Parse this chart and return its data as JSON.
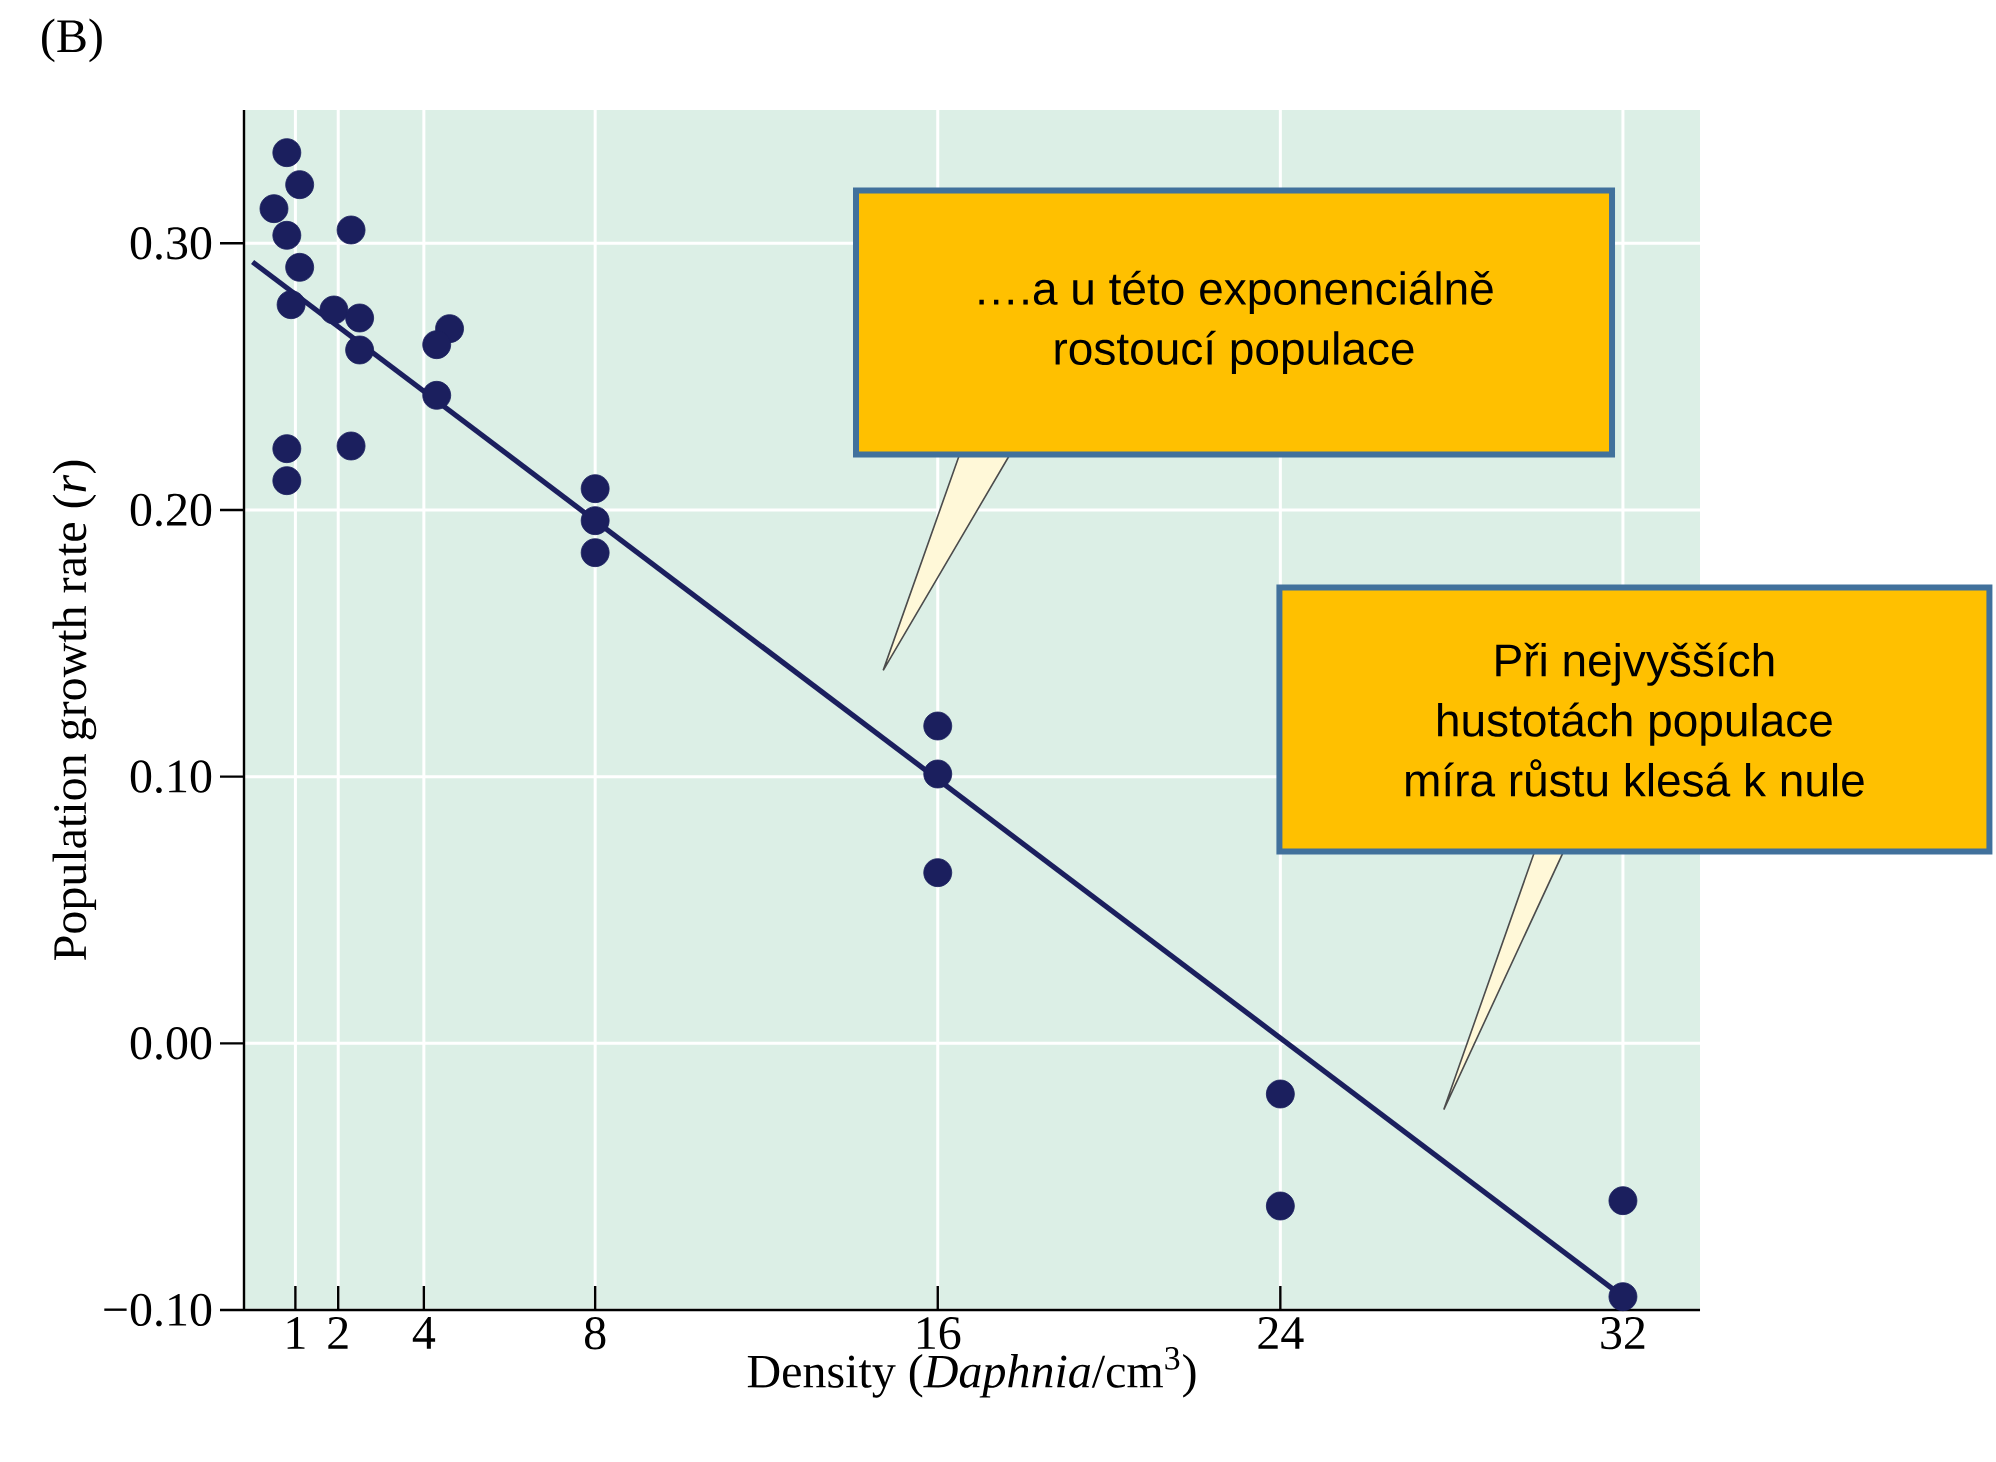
{
  "chart_data": {
    "type": "scatter",
    "title": "(B)",
    "xlabel": "Density (*Daphnia*/cm$^{3}$)",
    "ylabel": "Population growth rate (*r*)",
    "xlim": [
      -0.2,
      33.8
    ],
    "ylim": [
      -0.1,
      0.35
    ],
    "xticks": [
      1,
      2,
      4,
      8,
      16,
      24,
      32
    ],
    "yticks": [
      {
        "value": -0.1,
        "label": "−0.10"
      },
      {
        "value": 0,
        "label": "0.00"
      },
      {
        "value": 0.1,
        "label": "0.10"
      },
      {
        "value": 0.2,
        "label": "0.20"
      },
      {
        "value": 0.3,
        "label": "0.30"
      }
    ],
    "grid": true,
    "marker": "circle",
    "series": [
      {
        "color": "#1b1f5e",
        "x": [
          0.8,
          1.1,
          0.5,
          0.8,
          1.1,
          0.9,
          2.3,
          1.9,
          2.5,
          2.5,
          0.8,
          0.8,
          2.3,
          4.6,
          4.3,
          4.3,
          8.0,
          8.0,
          8.0,
          16.0,
          16.0,
          16.0,
          24.0,
          24.0,
          32.0,
          32.0
        ],
        "values": [
          0.334,
          0.322,
          0.313,
          0.303,
          0.291,
          0.277,
          0.305,
          0.275,
          0.272,
          0.26,
          0.223,
          0.211,
          0.224,
          0.268,
          0.262,
          0.243,
          0.208,
          0.196,
          0.184,
          0.119,
          0.101,
          0.064,
          -0.019,
          -0.061,
          -0.059,
          -0.095
        ]
      },
      {
        "type": "line",
        "color": "#1b1f5e",
        "marker": "none",
        "x": [
          0,
          32
        ],
        "values": [
          0.293,
          -0.095
        ]
      }
    ],
    "annotations": [
      "….a u této exponenciálně rostoucí populace",
      "Při nejvyšších hustotách populace míra růstu klesá k nule"
    ]
  }
}
